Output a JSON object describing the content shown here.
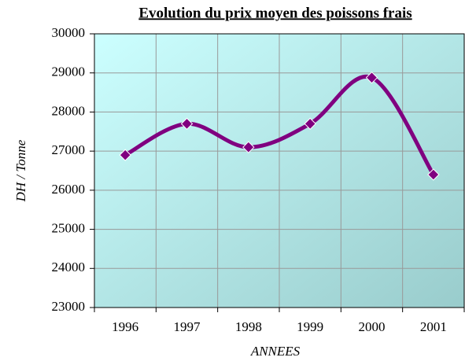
{
  "chart_data": {
    "type": "line",
    "title": "Evolution du prix moyen des poissons frais",
    "xlabel": "ANNEES",
    "ylabel": "DH / Tonne",
    "categories": [
      "1996",
      "1997",
      "1998",
      "1999",
      "2000",
      "2001"
    ],
    "values": [
      26900,
      27700,
      27100,
      27700,
      28880,
      26400
    ],
    "color": "#800080",
    "ylim": [
      23000,
      30000
    ],
    "yticks": [
      23000,
      24000,
      25000,
      26000,
      27000,
      28000,
      29000,
      30000
    ],
    "grid": true
  }
}
